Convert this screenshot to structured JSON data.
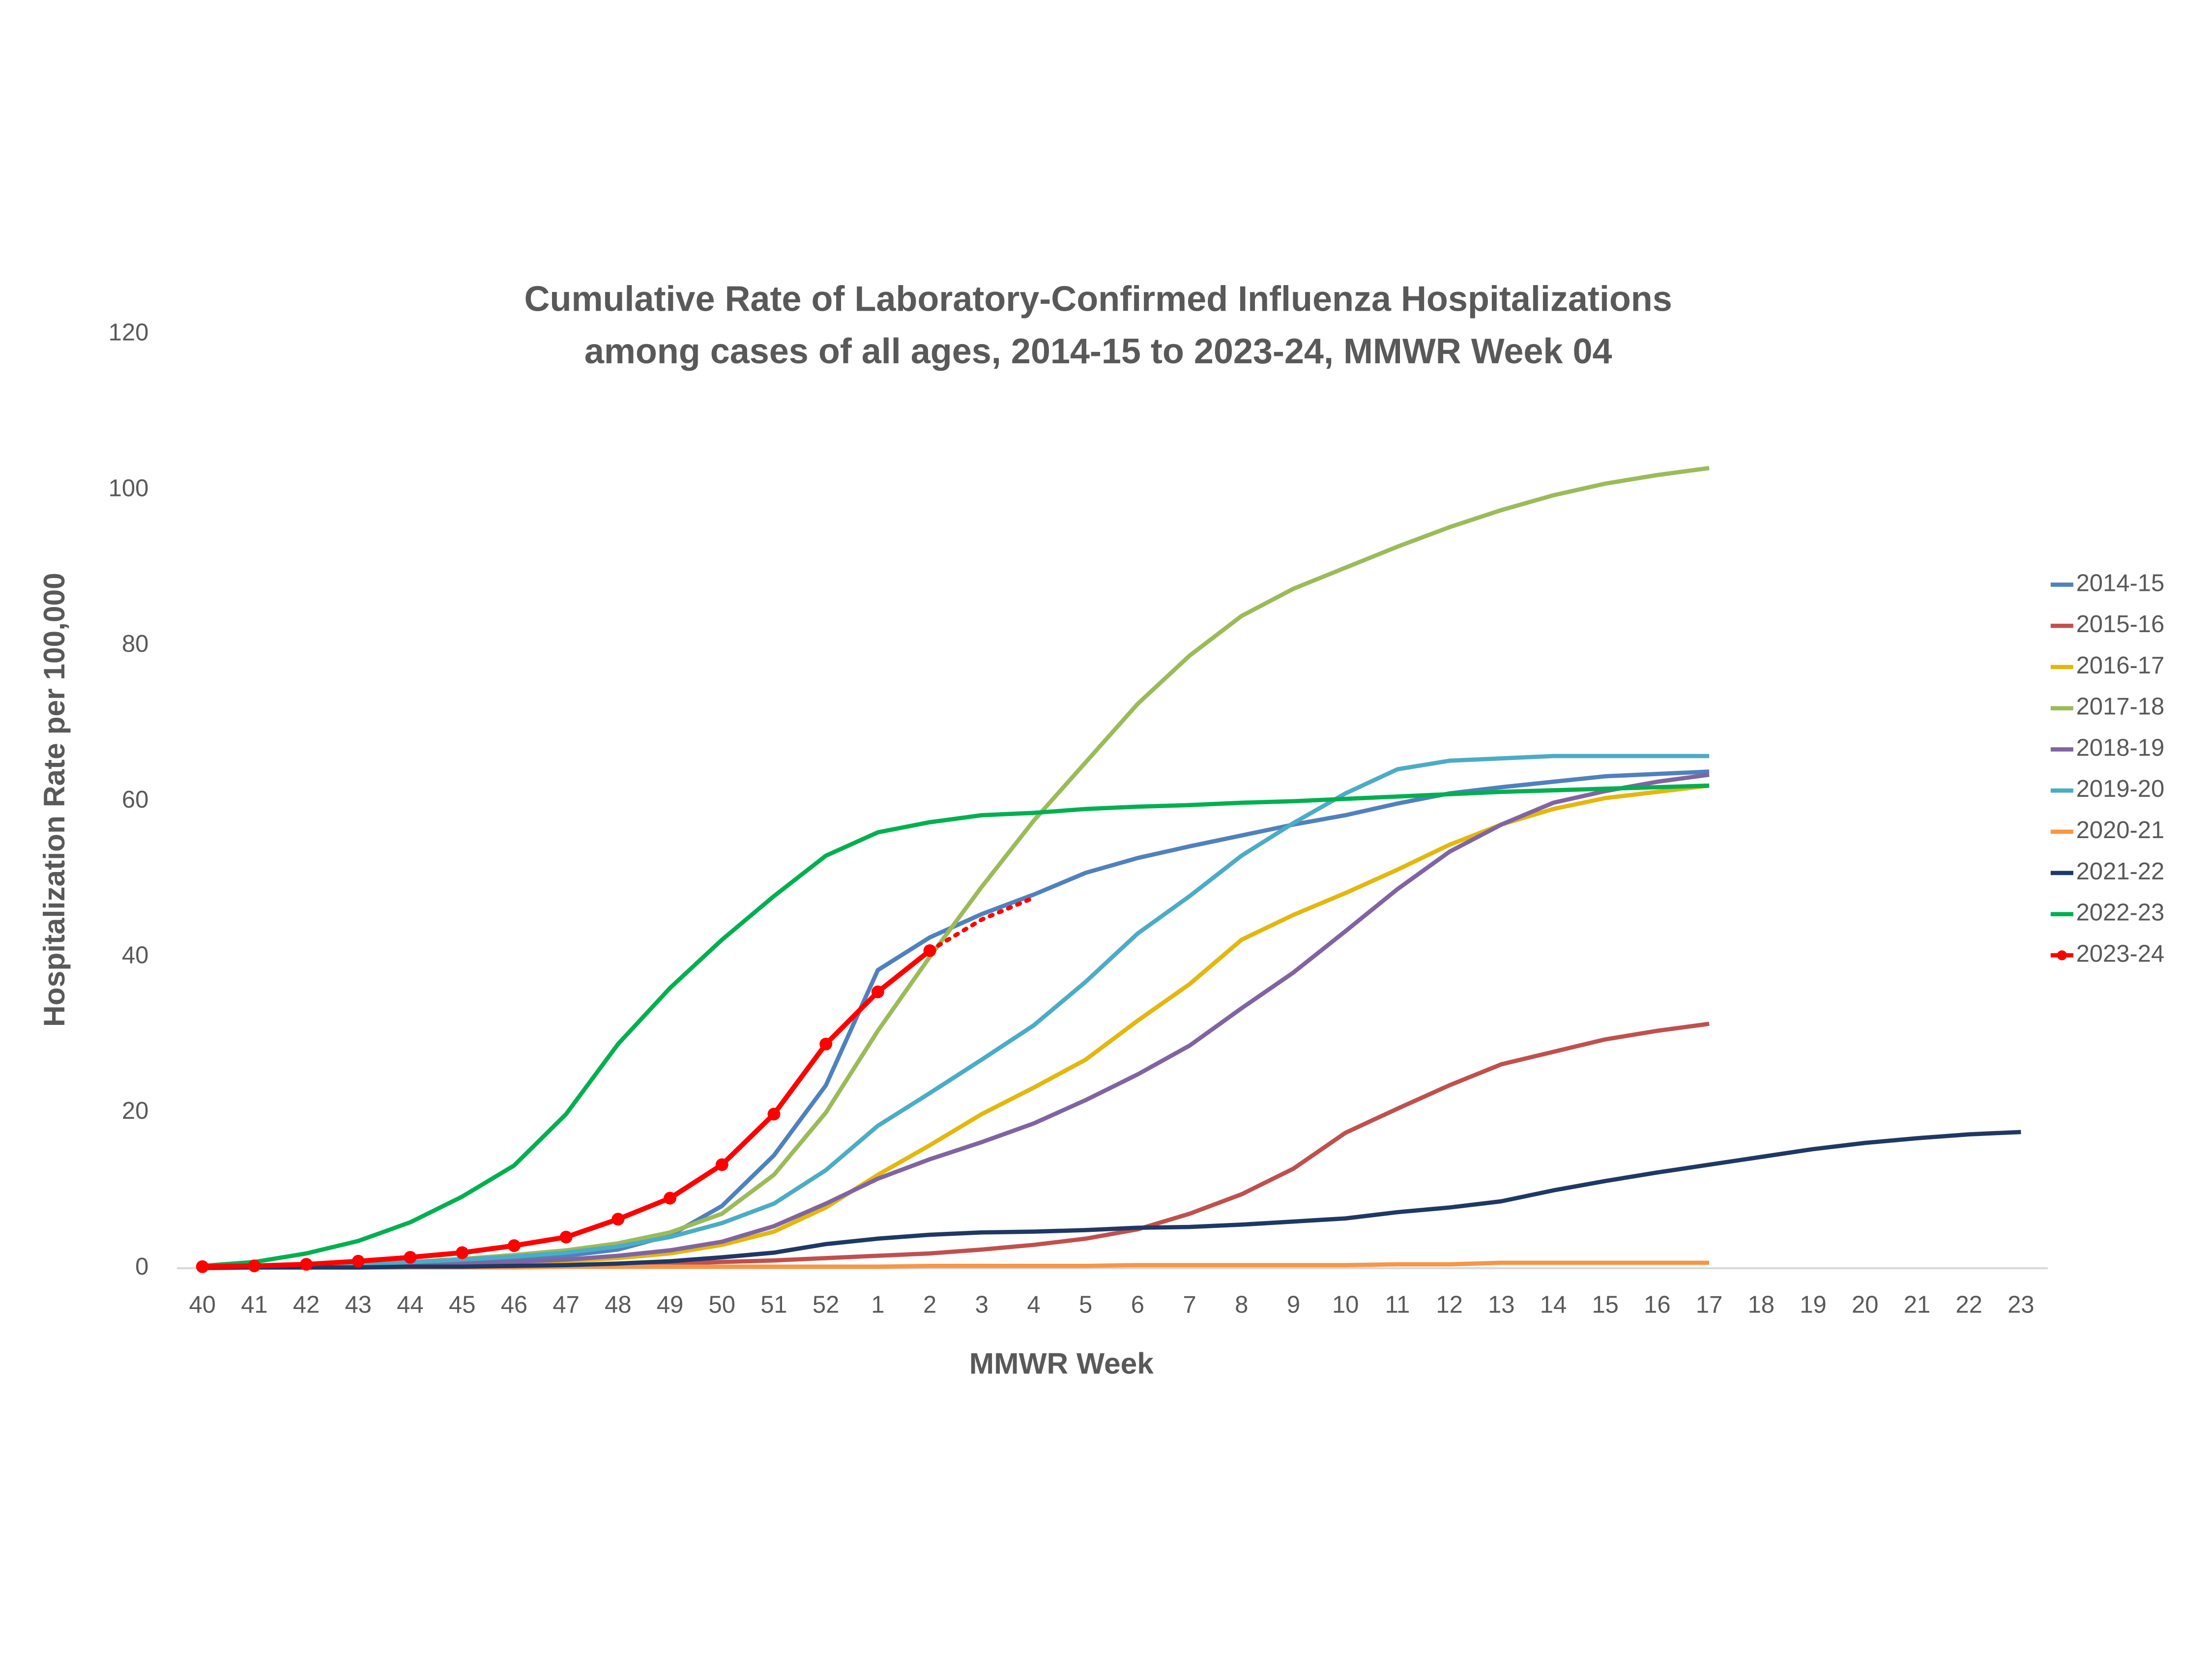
{
  "chart_data": {
    "type": "line",
    "title_lines": [
      "Cumulative Rate of Laboratory-Confirmed Influenza Hospitalizations",
      "among cases of all ages, 2014-15 to 2023-24, MMWR Week 04"
    ],
    "x_label": "MMWR Week",
    "y_label": "Hospitalization Rate per 100,000",
    "categories": [
      "40",
      "41",
      "42",
      "43",
      "44",
      "45",
      "46",
      "47",
      "48",
      "49",
      "50",
      "51",
      "52",
      "1",
      "2",
      "3",
      "4",
      "5",
      "6",
      "7",
      "8",
      "9",
      "10",
      "11",
      "12",
      "13",
      "14",
      "15",
      "16",
      "17",
      "18",
      "19",
      "20",
      "21",
      "22",
      "23"
    ],
    "ylim": [
      0,
      120
    ],
    "yticks": [
      0,
      20,
      40,
      60,
      80,
      100,
      120
    ],
    "grid": false,
    "legend": "right",
    "series": [
      {
        "name": "2014-15",
        "color": "#4f81bd",
        "values": [
          0.1,
          0.2,
          0.3,
          0.4,
          0.6,
          0.9,
          1.2,
          1.6,
          2.4,
          4.2,
          8,
          14.5,
          23.5,
          38.3,
          42.5,
          45.5,
          48,
          50.8,
          52.7,
          54.2,
          55.6,
          57,
          58.2,
          59.7,
          61,
          61.8,
          62.5,
          63.2,
          63.5,
          63.8,
          null,
          null,
          null,
          null,
          null,
          null
        ]
      },
      {
        "name": "2015-16",
        "color": "#c0504d",
        "values": [
          0,
          0.1,
          0.1,
          0.1,
          0.2,
          0.2,
          0.3,
          0.4,
          0.5,
          0.6,
          0.8,
          1,
          1.3,
          1.6,
          1.9,
          2.4,
          3,
          3.8,
          5,
          7,
          9.5,
          12.8,
          17.4,
          20.5,
          23.5,
          26.2,
          27.8,
          29.4,
          30.5,
          31.4,
          null,
          null,
          null,
          null,
          null,
          null
        ]
      },
      {
        "name": "2016-17",
        "color": "#e3b70e",
        "values": [
          0.1,
          0.1,
          0.2,
          0.3,
          0.4,
          0.5,
          0.7,
          0.9,
          1.3,
          1.9,
          3,
          4.7,
          7.8,
          12,
          15.8,
          19.8,
          23.2,
          26.8,
          31.8,
          36.5,
          42.2,
          45.4,
          48.2,
          51.2,
          54.4,
          57,
          59,
          60.4,
          61.2,
          62,
          null,
          null,
          null,
          null,
          null,
          null
        ]
      },
      {
        "name": "2017-18",
        "color": "#9bbb59",
        "values": [
          0.1,
          0.2,
          0.3,
          0.5,
          0.8,
          1.2,
          1.7,
          2.3,
          3.2,
          4.6,
          7,
          12,
          20,
          30.5,
          40,
          49,
          57.5,
          65,
          72.5,
          78.7,
          83.8,
          87.3,
          90,
          92.7,
          95.2,
          97.4,
          99.3,
          100.8,
          101.9,
          102.8,
          null,
          null,
          null,
          null,
          null,
          null
        ]
      },
      {
        "name": "2018-19",
        "color": "#8064a2",
        "values": [
          0.1,
          0.1,
          0.2,
          0.3,
          0.4,
          0.6,
          0.8,
          1.1,
          1.6,
          2.3,
          3.4,
          5.4,
          8.3,
          11.5,
          14,
          16.2,
          18.6,
          21.6,
          24.9,
          28.6,
          33.4,
          38,
          43.3,
          48.7,
          53.5,
          57,
          59.8,
          61.3,
          62.5,
          63.4,
          null,
          null,
          null,
          null,
          null,
          null
        ]
      },
      {
        "name": "2019-20",
        "color": "#4bacc6",
        "values": [
          0.1,
          0.2,
          0.3,
          0.5,
          0.8,
          1.1,
          1.5,
          2,
          2.8,
          4,
          5.8,
          8.3,
          12.6,
          18.3,
          22.5,
          26.8,
          31.2,
          36.8,
          43,
          47.8,
          53,
          57.2,
          61,
          64.1,
          65.2,
          65.5,
          65.8,
          65.8,
          65.8,
          65.8,
          null,
          null,
          null,
          null,
          null,
          null
        ]
      },
      {
        "name": "2020-21",
        "color": "#f79646",
        "values": [
          0.1,
          0.1,
          0.1,
          0.1,
          0.1,
          0.1,
          0.1,
          0.2,
          0.2,
          0.2,
          0.2,
          0.2,
          0.2,
          0.2,
          0.3,
          0.3,
          0.3,
          0.3,
          0.4,
          0.4,
          0.4,
          0.4,
          0.4,
          0.5,
          0.5,
          0.7,
          0.7,
          0.7,
          0.7,
          0.7,
          null,
          null,
          null,
          null,
          null,
          null
        ]
      },
      {
        "name": "2021-22",
        "color": "#1f3864",
        "values": [
          0.1,
          0.1,
          0.1,
          0.1,
          0.2,
          0.2,
          0.3,
          0.4,
          0.6,
          0.9,
          1.4,
          2,
          3.1,
          3.8,
          4.3,
          4.6,
          4.7,
          4.9,
          5.2,
          5.3,
          5.6,
          6,
          6.4,
          7.2,
          7.8,
          8.6,
          10,
          11.2,
          12.3,
          13.3,
          14.3,
          15.3,
          16.1,
          16.7,
          17.2,
          17.5
        ]
      },
      {
        "name": "2022-23",
        "color": "#00b050",
        "values": [
          0.3,
          0.8,
          1.9,
          3.5,
          5.9,
          9.2,
          13.2,
          19.8,
          28.8,
          36,
          42.2,
          47.8,
          53,
          56,
          57.3,
          58.2,
          58.5,
          59,
          59.3,
          59.5,
          59.8,
          60,
          60.3,
          60.6,
          60.9,
          61.2,
          61.4,
          61.6,
          61.8,
          62,
          null,
          null,
          null,
          null,
          null,
          null
        ]
      },
      {
        "name": "2023-24",
        "color": "#ff0000",
        "markers": true,
        "dotted_after": 14,
        "values": [
          0.2,
          0.3,
          0.5,
          0.9,
          1.4,
          2,
          2.9,
          4,
          6.3,
          9,
          13.3,
          19.8,
          28.8,
          35.5,
          40.8,
          44.8,
          47.6,
          null,
          null,
          null,
          null,
          null,
          null,
          null,
          null,
          null,
          null,
          null,
          null,
          null,
          null,
          null,
          null,
          null,
          null,
          null
        ]
      }
    ]
  }
}
